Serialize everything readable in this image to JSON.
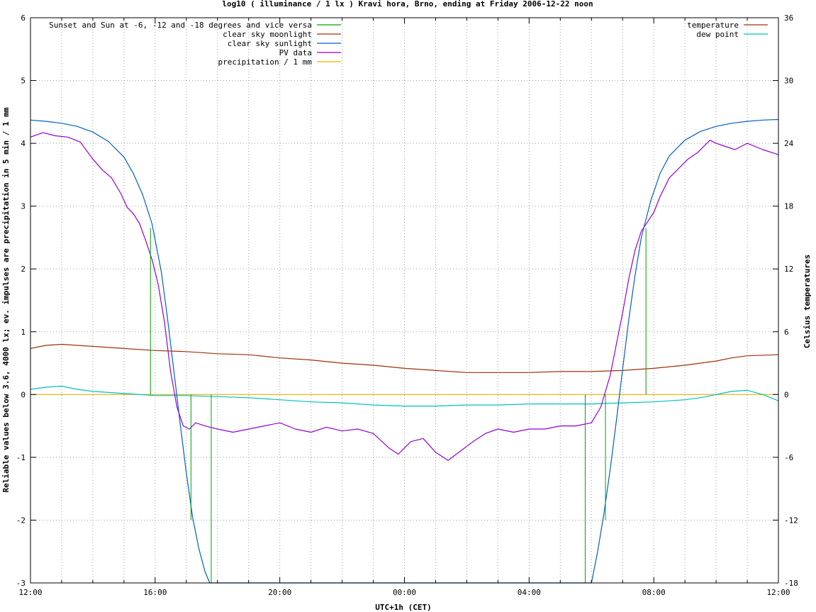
{
  "chart_data": {
    "type": "line",
    "title": "log10 ( illuminance / 1 lx ) Kravi hora, Brno, ending at Friday 2006-12-22 noon",
    "xlabel": "UTC+1h (CET)",
    "ylabel": "Reliable values below 3.6, 4000 lx; ev. impulses are precipitation in 5 min / 1 mm",
    "y2label": "Celsius temperatures",
    "x_unit": "hours since 12:00",
    "xlim": [
      0,
      24
    ],
    "ylim": [
      -3,
      6
    ],
    "y2lim": [
      -18,
      36
    ],
    "x_ticks": [
      {
        "x": 0,
        "label": "12:00"
      },
      {
        "x": 4,
        "label": "16:00"
      },
      {
        "x": 8,
        "label": "20:00"
      },
      {
        "x": 12,
        "label": "00:00"
      },
      {
        "x": 16,
        "label": "04:00"
      },
      {
        "x": 20,
        "label": "08:00"
      },
      {
        "x": 24,
        "label": "12:00"
      }
    ],
    "y_ticks": [
      "6",
      "5",
      "4",
      "3",
      "2",
      "1",
      "0",
      "-1",
      "-2",
      "-3"
    ],
    "y2_ticks": [
      "36",
      "30",
      "24",
      "18",
      "12",
      "6",
      "0",
      "-6",
      "-12",
      "-18"
    ],
    "grid": true,
    "legend_left": [
      {
        "name": "Sunset and Sun at -6, -12 and -18 degrees and vice versa",
        "color": "#00a000"
      },
      {
        "name": "clear sky moonlight",
        "color": "#a0300a"
      },
      {
        "name": "clear sky sunlight",
        "color": "#0060c0"
      },
      {
        "name": "PV data",
        "color": "#9400d3"
      },
      {
        "name": "precipitation / 1 mm",
        "color": "#f0b000"
      }
    ],
    "legend_right": [
      {
        "name": "temperature",
        "color": "#a0300a"
      },
      {
        "name": "dew point",
        "color": "#00c0c0"
      }
    ],
    "sun_events": [
      {
        "x": 3.85,
        "y": 2.65
      },
      {
        "x": 5.15,
        "y": -2.0
      },
      {
        "x": 5.8,
        "y": -3.0
      },
      {
        "x": 17.8,
        "y": -3.0
      },
      {
        "x": 18.45,
        "y": -2.0
      },
      {
        "x": 19.75,
        "y": 2.65
      }
    ],
    "series": [
      {
        "name": "clear sky sunlight",
        "color": "#0060c0",
        "axis": "y",
        "x": [
          0,
          0.5,
          1,
          1.5,
          2,
          2.5,
          3,
          3.3,
          3.6,
          3.9,
          4.2,
          4.4,
          4.6,
          4.8,
          5.0,
          5.2,
          5.4,
          5.6,
          5.75,
          18.0,
          18.2,
          18.4,
          18.6,
          18.8,
          19.0,
          19.2,
          19.4,
          19.6,
          19.9,
          20.2,
          20.5,
          21,
          21.5,
          22,
          22.5,
          23,
          23.5,
          24
        ],
        "y": [
          4.37,
          4.35,
          4.32,
          4.27,
          4.18,
          4.03,
          3.78,
          3.52,
          3.18,
          2.72,
          1.95,
          1.2,
          0.38,
          -0.45,
          -1.25,
          -1.95,
          -2.45,
          -2.82,
          -3.0,
          -3.0,
          -2.5,
          -1.9,
          -1.2,
          -0.42,
          0.4,
          1.2,
          1.9,
          2.5,
          3.08,
          3.52,
          3.8,
          4.05,
          4.19,
          4.27,
          4.32,
          4.35,
          4.37,
          4.38
        ]
      },
      {
        "name": "PV data",
        "color": "#9400d3",
        "axis": "y",
        "x": [
          0,
          0.4,
          0.8,
          1.2,
          1.6,
          2.0,
          2.3,
          2.6,
          2.9,
          3.1,
          3.3,
          3.5,
          3.7,
          3.9,
          4.1,
          4.3,
          4.5,
          4.7,
          4.9,
          5.1,
          5.3,
          5.6,
          6,
          6.5,
          7,
          7.5,
          8,
          8.5,
          9,
          9.5,
          10,
          10.5,
          11,
          11.5,
          11.8,
          12.2,
          12.6,
          13,
          13.4,
          13.8,
          14.2,
          14.6,
          15,
          15.5,
          16,
          16.5,
          17,
          17.5,
          18,
          18.3,
          18.6,
          18.8,
          19.0,
          19.2,
          19.4,
          19.6,
          19.8,
          20.0,
          20.2,
          20.5,
          20.8,
          21.1,
          21.4,
          21.8,
          22.0,
          22.3,
          22.6,
          23,
          23.5,
          24
        ],
        "y": [
          4.1,
          4.17,
          4.12,
          4.1,
          4.02,
          3.75,
          3.58,
          3.45,
          3.2,
          2.98,
          2.88,
          2.72,
          2.45,
          2.15,
          1.75,
          1.15,
          0.35,
          -0.2,
          -0.5,
          -0.55,
          -0.45,
          -0.5,
          -0.55,
          -0.6,
          -0.55,
          -0.5,
          -0.45,
          -0.55,
          -0.6,
          -0.52,
          -0.58,
          -0.55,
          -0.62,
          -0.85,
          -0.95,
          -0.75,
          -0.7,
          -0.92,
          -1.05,
          -0.9,
          -0.75,
          -0.62,
          -0.55,
          -0.6,
          -0.55,
          -0.55,
          -0.5,
          -0.5,
          -0.45,
          -0.2,
          0.3,
          0.8,
          1.3,
          1.85,
          2.3,
          2.6,
          2.75,
          2.9,
          3.15,
          3.45,
          3.6,
          3.75,
          3.85,
          4.05,
          4.0,
          3.95,
          3.9,
          4.0,
          3.9,
          3.82
        ]
      },
      {
        "name": "temperature",
        "color": "#a0300a",
        "axis": "y2",
        "x": [
          0,
          0.5,
          1,
          1.5,
          2,
          3,
          4,
          5,
          6,
          7,
          8,
          9,
          10,
          11,
          12,
          13,
          14,
          15,
          16,
          17,
          18,
          19,
          19.5,
          20,
          21,
          22,
          22.5,
          23,
          24
        ],
        "y": [
          4.4,
          4.7,
          4.8,
          4.7,
          4.6,
          4.4,
          4.2,
          4.1,
          3.9,
          3.8,
          3.5,
          3.3,
          3.0,
          2.8,
          2.5,
          2.3,
          2.1,
          2.1,
          2.1,
          2.2,
          2.2,
          2.3,
          2.4,
          2.5,
          2.8,
          3.2,
          3.5,
          3.7,
          3.8
        ]
      },
      {
        "name": "dew point",
        "color": "#00c0c0",
        "axis": "y2",
        "x": [
          0,
          0.5,
          1,
          1.5,
          2,
          3,
          4,
          5,
          6,
          7,
          8,
          9,
          10,
          11,
          12,
          13,
          14,
          15,
          16,
          17,
          18,
          19,
          20,
          21,
          21.5,
          22,
          22.5,
          23,
          23.5,
          24
        ],
        "y": [
          0.5,
          0.7,
          0.8,
          0.5,
          0.3,
          0.1,
          -0.1,
          -0.1,
          -0.2,
          -0.3,
          -0.5,
          -0.7,
          -0.8,
          -1.0,
          -1.1,
          -1.1,
          -1.0,
          -1.0,
          -0.9,
          -0.9,
          -0.9,
          -0.8,
          -0.7,
          -0.5,
          -0.3,
          0.0,
          0.3,
          0.4,
          0.0,
          -0.6
        ]
      },
      {
        "name": "precipitation / 1 mm",
        "color": "#f0b000",
        "axis": "y",
        "x": [
          0,
          24
        ],
        "y": [
          0,
          0
        ]
      }
    ]
  }
}
